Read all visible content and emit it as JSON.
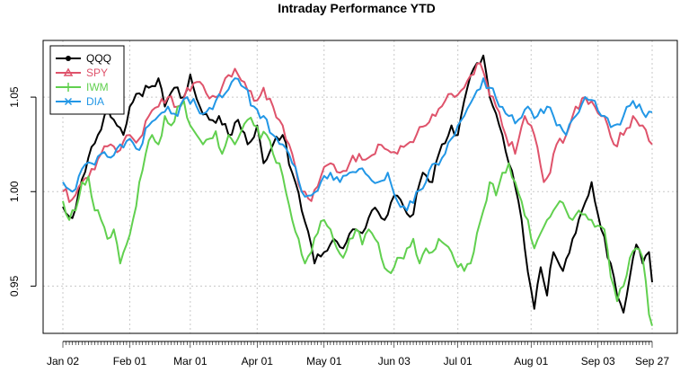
{
  "chart_data": {
    "type": "line",
    "title": "Intraday Performance YTD",
    "xlabel": "",
    "ylabel": "",
    "x_tick_labels": [
      "Jan 02",
      "Feb 01",
      "Mar 01",
      "Apr 01",
      "May 01",
      "Jun 03",
      "Jul 01",
      "Aug 01",
      "Sep 03",
      "Sep 27"
    ],
    "x_tick_positions": [
      0,
      21,
      40,
      61,
      82,
      104,
      124,
      147,
      168,
      185
    ],
    "n_points": 186,
    "y_ticks": [
      0.95,
      1.0,
      1.05
    ],
    "y_tick_labels": [
      "0.95",
      "1.00",
      "1.05"
    ],
    "ylim": [
      0.925,
      1.08
    ],
    "grid": true,
    "legend_position": "top-left",
    "series": [
      {
        "name": "QQQ",
        "color": "#000000",
        "marker": "circle",
        "anchors": [
          [
            0,
            0.992
          ],
          [
            3,
            0.986
          ],
          [
            5,
            1.0
          ],
          [
            8,
            1.018
          ],
          [
            11,
            1.03
          ],
          [
            14,
            1.045
          ],
          [
            16,
            1.038
          ],
          [
            19,
            1.03
          ],
          [
            21,
            1.045
          ],
          [
            24,
            1.052
          ],
          [
            27,
            1.055
          ],
          [
            30,
            1.06
          ],
          [
            32,
            1.045
          ],
          [
            35,
            1.055
          ],
          [
            38,
            1.05
          ],
          [
            40,
            1.062
          ],
          [
            43,
            1.045
          ],
          [
            46,
            1.038
          ],
          [
            49,
            1.04
          ],
          [
            52,
            1.03
          ],
          [
            55,
            1.038
          ],
          [
            58,
            1.025
          ],
          [
            61,
            1.035
          ],
          [
            63,
            1.015
          ],
          [
            66,
            1.025
          ],
          [
            69,
            1.03
          ],
          [
            72,
            1.01
          ],
          [
            75,
            0.99
          ],
          [
            79,
            0.962
          ],
          [
            82,
            0.968
          ],
          [
            85,
            0.975
          ],
          [
            88,
            0.97
          ],
          [
            91,
            0.98
          ],
          [
            94,
            0.978
          ],
          [
            97,
            0.99
          ],
          [
            101,
            0.985
          ],
          [
            104,
            0.998
          ],
          [
            107,
            0.992
          ],
          [
            110,
            0.988
          ],
          [
            113,
            1.01
          ],
          [
            116,
            1.005
          ],
          [
            119,
            1.025
          ],
          [
            122,
            1.035
          ],
          [
            124,
            1.03
          ],
          [
            127,
            1.055
          ],
          [
            130,
            1.068
          ],
          [
            132,
            1.072
          ],
          [
            134,
            1.05
          ],
          [
            137,
            1.035
          ],
          [
            140,
            1.015
          ],
          [
            143,
            0.995
          ],
          [
            145,
            0.97
          ],
          [
            147,
            0.948
          ],
          [
            148,
            0.938
          ],
          [
            150,
            0.96
          ],
          [
            152,
            0.945
          ],
          [
            154,
            0.968
          ],
          [
            157,
            0.958
          ],
          [
            160,
            0.975
          ],
          [
            163,
            0.99
          ],
          [
            166,
            1.005
          ],
          [
            169,
            0.98
          ],
          [
            172,
            0.962
          ],
          [
            174,
            0.945
          ],
          [
            176,
            0.936
          ],
          [
            178,
            0.955
          ],
          [
            180,
            0.972
          ],
          [
            182,
            0.962
          ],
          [
            184,
            0.968
          ],
          [
            185,
            0.952
          ]
        ]
      },
      {
        "name": "SPY",
        "color": "#DF536B",
        "marker": "triangle",
        "anchors": [
          [
            0,
            1.0
          ],
          [
            3,
            0.996
          ],
          [
            6,
            1.005
          ],
          [
            9,
            1.012
          ],
          [
            12,
            1.02
          ],
          [
            15,
            1.025
          ],
          [
            18,
            1.022
          ],
          [
            21,
            1.03
          ],
          [
            24,
            1.028
          ],
          [
            27,
            1.04
          ],
          [
            30,
            1.045
          ],
          [
            33,
            1.05
          ],
          [
            36,
            1.045
          ],
          [
            39,
            1.055
          ],
          [
            42,
            1.058
          ],
          [
            45,
            1.052
          ],
          [
            48,
            1.05
          ],
          [
            51,
            1.06
          ],
          [
            54,
            1.065
          ],
          [
            57,
            1.058
          ],
          [
            60,
            1.048
          ],
          [
            63,
            1.055
          ],
          [
            66,
            1.045
          ],
          [
            69,
            1.035
          ],
          [
            72,
            1.02
          ],
          [
            75,
            1.0
          ],
          [
            78,
            0.995
          ],
          [
            81,
            1.008
          ],
          [
            84,
            1.015
          ],
          [
            87,
            1.01
          ],
          [
            90,
            1.015
          ],
          [
            93,
            1.02
          ],
          [
            96,
            1.018
          ],
          [
            99,
            1.025
          ],
          [
            102,
            1.022
          ],
          [
            105,
            1.02
          ],
          [
            108,
            1.025
          ],
          [
            111,
            1.03
          ],
          [
            114,
            1.035
          ],
          [
            117,
            1.04
          ],
          [
            120,
            1.048
          ],
          [
            123,
            1.05
          ],
          [
            126,
            1.055
          ],
          [
            129,
            1.062
          ],
          [
            131,
            1.068
          ],
          [
            133,
            1.058
          ],
          [
            136,
            1.045
          ],
          [
            139,
            1.03
          ],
          [
            142,
            1.02
          ],
          [
            145,
            1.04
          ],
          [
            148,
            1.03
          ],
          [
            151,
            1.005
          ],
          [
            153,
            1.01
          ],
          [
            155,
            1.025
          ],
          [
            158,
            1.03
          ],
          [
            161,
            1.045
          ],
          [
            164,
            1.05
          ],
          [
            167,
            1.045
          ],
          [
            170,
            1.04
          ],
          [
            173,
            1.025
          ],
          [
            176,
            1.03
          ],
          [
            179,
            1.04
          ],
          [
            182,
            1.035
          ],
          [
            185,
            1.025
          ]
        ]
      },
      {
        "name": "IWM",
        "color": "#61D04F",
        "marker": "plus",
        "anchors": [
          [
            0,
            0.995
          ],
          [
            2,
            0.985
          ],
          [
            4,
            0.99
          ],
          [
            6,
            1.005
          ],
          [
            8,
            1.008
          ],
          [
            10,
            0.99
          ],
          [
            12,
            0.985
          ],
          [
            14,
            0.975
          ],
          [
            16,
            0.98
          ],
          [
            18,
            0.962
          ],
          [
            20,
            0.972
          ],
          [
            22,
            0.985
          ],
          [
            24,
            1.005
          ],
          [
            26,
            1.02
          ],
          [
            28,
            1.03
          ],
          [
            30,
            1.025
          ],
          [
            32,
            1.04
          ],
          [
            34,
            1.035
          ],
          [
            36,
            1.045
          ],
          [
            38,
            1.048
          ],
          [
            40,
            1.035
          ],
          [
            42,
            1.03
          ],
          [
            44,
            1.025
          ],
          [
            46,
            1.028
          ],
          [
            48,
            1.032
          ],
          [
            50,
            1.02
          ],
          [
            52,
            1.03
          ],
          [
            54,
            1.025
          ],
          [
            56,
            1.032
          ],
          [
            58,
            1.038
          ],
          [
            60,
            1.035
          ],
          [
            62,
            1.028
          ],
          [
            64,
            1.03
          ],
          [
            66,
            1.02
          ],
          [
            68,
            1.015
          ],
          [
            70,
            1.0
          ],
          [
            72,
            0.985
          ],
          [
            74,
            0.975
          ],
          [
            76,
            0.962
          ],
          [
            78,
            0.968
          ],
          [
            80,
            0.978
          ],
          [
            82,
            0.985
          ],
          [
            84,
            0.98
          ],
          [
            86,
            0.97
          ],
          [
            88,
            0.965
          ],
          [
            90,
            0.975
          ],
          [
            92,
            0.98
          ],
          [
            94,
            0.972
          ],
          [
            96,
            0.98
          ],
          [
            98,
            0.975
          ],
          [
            100,
            0.965
          ],
          [
            102,
            0.958
          ],
          [
            104,
            0.96
          ],
          [
            106,
            0.965
          ],
          [
            108,
            0.97
          ],
          [
            110,
            0.975
          ],
          [
            112,
            0.962
          ],
          [
            114,
            0.97
          ],
          [
            116,
            0.968
          ],
          [
            118,
            0.975
          ],
          [
            120,
            0.972
          ],
          [
            122,
            0.968
          ],
          [
            124,
            0.96
          ],
          [
            126,
            0.958
          ],
          [
            128,
            0.962
          ],
          [
            130,
            0.978
          ],
          [
            132,
            0.99
          ],
          [
            134,
            1.005
          ],
          [
            136,
            0.998
          ],
          [
            138,
            1.01
          ],
          [
            140,
            1.015
          ],
          [
            142,
            1.005
          ],
          [
            144,
            0.995
          ],
          [
            146,
            0.985
          ],
          [
            148,
            0.97
          ],
          [
            150,
            0.978
          ],
          [
            152,
            0.985
          ],
          [
            154,
            0.99
          ],
          [
            156,
            0.995
          ],
          [
            158,
            0.99
          ],
          [
            160,
            0.985
          ],
          [
            162,
            0.99
          ],
          [
            164,
            0.988
          ],
          [
            166,
            0.985
          ],
          [
            168,
            0.982
          ],
          [
            170,
            0.98
          ],
          [
            172,
            0.955
          ],
          [
            174,
            0.942
          ],
          [
            176,
            0.95
          ],
          [
            178,
            0.965
          ],
          [
            180,
            0.97
          ],
          [
            182,
            0.965
          ],
          [
            184,
            0.935
          ],
          [
            185,
            0.929
          ]
        ]
      },
      {
        "name": "DIA",
        "color": "#2297E6",
        "marker": "x",
        "anchors": [
          [
            0,
            1.005
          ],
          [
            3,
            1.0
          ],
          [
            6,
            1.012
          ],
          [
            9,
            1.015
          ],
          [
            12,
            1.02
          ],
          [
            15,
            1.018
          ],
          [
            18,
            1.025
          ],
          [
            21,
            1.028
          ],
          [
            24,
            1.022
          ],
          [
            27,
            1.035
          ],
          [
            30,
            1.04
          ],
          [
            33,
            1.045
          ],
          [
            36,
            1.04
          ],
          [
            39,
            1.05
          ],
          [
            42,
            1.045
          ],
          [
            45,
            1.042
          ],
          [
            48,
            1.048
          ],
          [
            51,
            1.052
          ],
          [
            54,
            1.06
          ],
          [
            57,
            1.055
          ],
          [
            60,
            1.045
          ],
          [
            63,
            1.04
          ],
          [
            66,
            1.03
          ],
          [
            69,
            1.025
          ],
          [
            72,
            1.015
          ],
          [
            75,
            1.0
          ],
          [
            78,
            0.998
          ],
          [
            81,
            1.005
          ],
          [
            84,
            1.01
          ],
          [
            87,
            1.005
          ],
          [
            90,
            1.01
          ],
          [
            93,
            1.012
          ],
          [
            96,
            1.008
          ],
          [
            99,
            1.005
          ],
          [
            102,
            1.01
          ],
          [
            105,
            0.995
          ],
          [
            108,
            0.99
          ],
          [
            111,
            1.0
          ],
          [
            114,
            1.005
          ],
          [
            117,
            1.015
          ],
          [
            120,
            1.02
          ],
          [
            123,
            1.03
          ],
          [
            126,
            1.04
          ],
          [
            129,
            1.05
          ],
          [
            132,
            1.06
          ],
          [
            134,
            1.055
          ],
          [
            137,
            1.045
          ],
          [
            140,
            1.04
          ],
          [
            143,
            1.038
          ],
          [
            146,
            1.045
          ],
          [
            149,
            1.04
          ],
          [
            152,
            1.045
          ],
          [
            155,
            1.035
          ],
          [
            158,
            1.03
          ],
          [
            161,
            1.04
          ],
          [
            164,
            1.05
          ],
          [
            167,
            1.048
          ],
          [
            170,
            1.04
          ],
          [
            173,
            1.035
          ],
          [
            176,
            1.04
          ],
          [
            179,
            1.048
          ],
          [
            182,
            1.042
          ],
          [
            185,
            1.042
          ]
        ]
      }
    ]
  }
}
